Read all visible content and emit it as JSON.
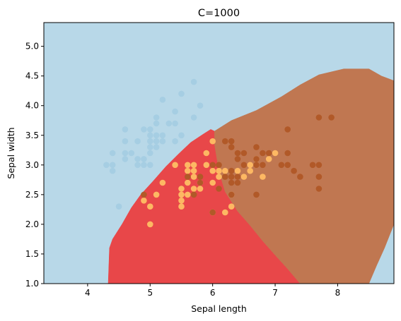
{
  "chart_data": {
    "type": "scatter",
    "title": "C=1000",
    "xlabel": "Sepal length",
    "ylabel": "Sepal width",
    "xlim": [
      3.3,
      8.9
    ],
    "ylim": [
      1.0,
      5.4
    ],
    "x_ticks": [
      4,
      5,
      6,
      7,
      8
    ],
    "y_ticks": [
      1.0,
      1.5,
      2.0,
      2.5,
      3.0,
      3.5,
      4.0,
      4.5,
      5.0
    ],
    "grid": false,
    "regions": [
      {
        "class": "setosa",
        "color": "#b8d8e8",
        "polygon": [
          [
            3.3,
            1.0
          ],
          [
            8.9,
            1.0
          ],
          [
            8.9,
            5.4
          ],
          [
            3.3,
            5.4
          ]
        ]
      },
      {
        "class": "versicolor",
        "color": "#e84749",
        "polygon": [
          [
            4.33,
            1.0
          ],
          [
            4.35,
            1.6
          ],
          [
            4.4,
            1.75
          ],
          [
            4.55,
            2.0
          ],
          [
            4.7,
            2.28
          ],
          [
            4.85,
            2.5
          ],
          [
            5.05,
            2.73
          ],
          [
            5.25,
            2.97
          ],
          [
            5.45,
            3.18
          ],
          [
            5.65,
            3.38
          ],
          [
            5.85,
            3.52
          ],
          [
            5.97,
            3.6
          ],
          [
            6.03,
            3.57
          ],
          [
            6.03,
            3.35
          ],
          [
            6.1,
            2.9
          ],
          [
            6.2,
            2.55
          ],
          [
            6.4,
            2.22
          ],
          [
            6.6,
            1.98
          ],
          [
            6.8,
            1.72
          ],
          [
            7.0,
            1.48
          ],
          [
            7.2,
            1.25
          ],
          [
            7.4,
            1.0
          ]
        ]
      },
      {
        "class": "virginica",
        "color": "#c07751",
        "polygon": [
          [
            6.03,
            3.57
          ],
          [
            6.3,
            3.75
          ],
          [
            6.7,
            3.92
          ],
          [
            7.1,
            4.15
          ],
          [
            7.4,
            4.35
          ],
          [
            7.7,
            4.52
          ],
          [
            8.1,
            4.62
          ],
          [
            8.5,
            4.62
          ],
          [
            8.7,
            4.5
          ],
          [
            8.9,
            4.42
          ],
          [
            8.9,
            2.0
          ],
          [
            8.75,
            1.6
          ],
          [
            8.62,
            1.3
          ],
          [
            8.5,
            1.0
          ],
          [
            7.4,
            1.0
          ],
          [
            7.2,
            1.25
          ],
          [
            7.0,
            1.48
          ],
          [
            6.8,
            1.72
          ],
          [
            6.6,
            1.98
          ],
          [
            6.4,
            2.22
          ],
          [
            6.2,
            2.55
          ],
          [
            6.1,
            2.9
          ],
          [
            6.03,
            3.35
          ]
        ]
      }
    ],
    "series": [
      {
        "class": "setosa",
        "color": "#a6cee3",
        "points": [
          [
            4.3,
            3.0
          ],
          [
            4.4,
            3.2
          ],
          [
            4.4,
            3.0
          ],
          [
            4.4,
            2.9
          ],
          [
            4.5,
            2.3
          ],
          [
            4.6,
            3.6
          ],
          [
            4.6,
            3.4
          ],
          [
            4.6,
            3.2
          ],
          [
            4.6,
            3.1
          ],
          [
            4.7,
            3.2
          ],
          [
            4.8,
            3.4
          ],
          [
            4.8,
            3.1
          ],
          [
            4.8,
            3.0
          ],
          [
            4.9,
            3.6
          ],
          [
            4.9,
            3.1
          ],
          [
            4.9,
            3.0
          ],
          [
            5.0,
            3.6
          ],
          [
            5.0,
            3.5
          ],
          [
            5.0,
            3.4
          ],
          [
            5.0,
            3.3
          ],
          [
            5.0,
            3.2
          ],
          [
            5.0,
            3.0
          ],
          [
            5.1,
            3.8
          ],
          [
            5.1,
            3.7
          ],
          [
            5.1,
            3.5
          ],
          [
            5.1,
            3.4
          ],
          [
            5.1,
            3.3
          ],
          [
            5.2,
            4.1
          ],
          [
            5.2,
            3.5
          ],
          [
            5.2,
            3.4
          ],
          [
            5.3,
            3.7
          ],
          [
            5.4,
            3.9
          ],
          [
            5.4,
            3.7
          ],
          [
            5.4,
            3.4
          ],
          [
            5.5,
            4.2
          ],
          [
            5.5,
            3.5
          ],
          [
            5.7,
            4.4
          ],
          [
            5.7,
            3.8
          ],
          [
            5.8,
            4.0
          ]
        ]
      },
      {
        "class": "versicolor",
        "color": "#fdb863",
        "points": [
          [
            4.9,
            2.4
          ],
          [
            5.0,
            2.3
          ],
          [
            5.0,
            2.0
          ],
          [
            5.1,
            2.5
          ],
          [
            5.2,
            2.7
          ],
          [
            5.4,
            3.0
          ],
          [
            5.5,
            2.6
          ],
          [
            5.5,
            2.5
          ],
          [
            5.5,
            2.4
          ],
          [
            5.5,
            2.3
          ],
          [
            5.6,
            3.0
          ],
          [
            5.6,
            2.9
          ],
          [
            5.6,
            2.7
          ],
          [
            5.6,
            2.5
          ],
          [
            5.7,
            3.0
          ],
          [
            5.7,
            2.9
          ],
          [
            5.7,
            2.8
          ],
          [
            5.7,
            2.6
          ],
          [
            5.8,
            2.7
          ],
          [
            5.8,
            2.6
          ],
          [
            5.9,
            3.2
          ],
          [
            5.9,
            3.0
          ],
          [
            6.0,
            3.4
          ],
          [
            6.0,
            2.9
          ],
          [
            6.0,
            2.7
          ],
          [
            6.0,
            2.2
          ],
          [
            6.1,
            2.9
          ],
          [
            6.1,
            2.8
          ],
          [
            6.2,
            2.9
          ],
          [
            6.2,
            2.2
          ],
          [
            6.3,
            2.5
          ],
          [
            6.3,
            2.3
          ],
          [
            6.4,
            2.9
          ],
          [
            6.5,
            2.8
          ],
          [
            6.6,
            3.0
          ],
          [
            6.6,
            2.9
          ],
          [
            6.7,
            3.1
          ],
          [
            6.7,
            3.0
          ],
          [
            6.8,
            2.8
          ],
          [
            6.9,
            3.1
          ],
          [
            7.0,
            3.2
          ]
        ]
      },
      {
        "class": "virginica",
        "color": "#b15928",
        "points": [
          [
            4.9,
            2.5
          ],
          [
            5.6,
            2.8
          ],
          [
            5.7,
            2.5
          ],
          [
            5.8,
            2.8
          ],
          [
            5.8,
            2.7
          ],
          [
            6.0,
            3.0
          ],
          [
            6.0,
            2.2
          ],
          [
            6.1,
            3.0
          ],
          [
            6.1,
            2.6
          ],
          [
            6.2,
            3.4
          ],
          [
            6.2,
            2.8
          ],
          [
            6.3,
            3.4
          ],
          [
            6.3,
            3.3
          ],
          [
            6.3,
            2.9
          ],
          [
            6.3,
            2.8
          ],
          [
            6.3,
            2.7
          ],
          [
            6.3,
            2.5
          ],
          [
            6.4,
            3.2
          ],
          [
            6.4,
            3.1
          ],
          [
            6.4,
            2.8
          ],
          [
            6.4,
            2.7
          ],
          [
            6.5,
            3.2
          ],
          [
            6.5,
            3.0
          ],
          [
            6.7,
            3.3
          ],
          [
            6.7,
            3.1
          ],
          [
            6.7,
            3.0
          ],
          [
            6.7,
            2.5
          ],
          [
            6.8,
            3.2
          ],
          [
            6.8,
            3.0
          ],
          [
            6.9,
            3.2
          ],
          [
            7.1,
            3.0
          ],
          [
            7.2,
            3.6
          ],
          [
            7.2,
            3.2
          ],
          [
            7.2,
            3.0
          ],
          [
            7.3,
            2.9
          ],
          [
            7.4,
            2.8
          ],
          [
            7.6,
            3.0
          ],
          [
            7.7,
            3.8
          ],
          [
            7.7,
            3.0
          ],
          [
            7.7,
            2.8
          ],
          [
            7.7,
            2.6
          ],
          [
            7.9,
            3.8
          ]
        ]
      }
    ]
  }
}
